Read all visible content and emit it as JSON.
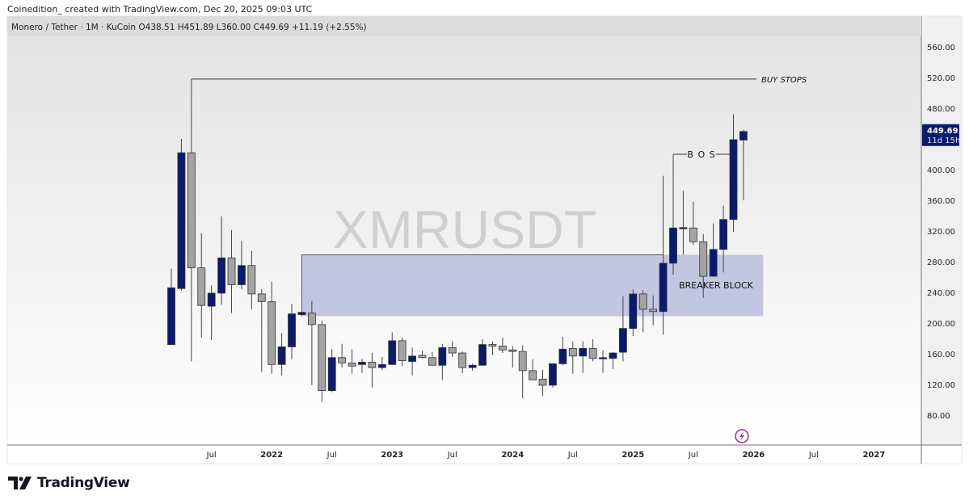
{
  "credit": "Coinedition_ created with TradingView.com, Dec 20, 2025 09:03 UTC",
  "legend": "Monero / Tether · 1M · KuCoin  O438.51  H451.89  L360.00  C449.69  +11.19 (+2.55%)",
  "watermark": "XMRUSDT",
  "brand": "TradingView",
  "colors": {
    "up": "#0c1a6b",
    "down": "#a3a3a3",
    "zone": "#c3c6e0",
    "price_label": "#0c1a6b",
    "event_icon": "#9c27b0"
  },
  "icons": {
    "event": "lightning-icon",
    "logo": "tradingview-logo"
  },
  "chart_data": {
    "type": "candlestick",
    "timeframe": "1M",
    "start_month": "2021-03",
    "ylim": [
      60,
      600
    ],
    "yticks": [
      80,
      120,
      160,
      200,
      240,
      280,
      320,
      360,
      400,
      440,
      480,
      520,
      560
    ],
    "ytick_labels": [
      "80.00",
      "120.00",
      "160.00",
      "200.00",
      "240.00",
      "280.00",
      "320.00",
      "360.00",
      "400.00",
      "440.00",
      "480.00",
      "520.00",
      "560.00"
    ],
    "xticks": [
      {
        "label": "Jul",
        "month": "2021-07",
        "bold": false
      },
      {
        "label": "2022",
        "month": "2022-01",
        "bold": true
      },
      {
        "label": "Jul",
        "month": "2022-07",
        "bold": false
      },
      {
        "label": "2023",
        "month": "2023-01",
        "bold": true
      },
      {
        "label": "Jul",
        "month": "2023-07",
        "bold": false
      },
      {
        "label": "2024",
        "month": "2024-01",
        "bold": true
      },
      {
        "label": "Jul",
        "month": "2024-07",
        "bold": false
      },
      {
        "label": "2025",
        "month": "2025-01",
        "bold": true
      },
      {
        "label": "Jul",
        "month": "2025-07",
        "bold": false
      },
      {
        "label": "2026",
        "month": "2026-01",
        "bold": true
      },
      {
        "label": "Jul",
        "month": "2026-07",
        "bold": false
      },
      {
        "label": "2027",
        "month": "2027-01",
        "bold": true
      }
    ],
    "ohlc": [
      [
        172,
        271,
        172,
        246
      ],
      [
        245,
        440,
        242,
        422
      ],
      [
        422,
        518,
        150,
        272
      ],
      [
        272,
        317,
        181,
        223
      ],
      [
        222,
        249,
        178,
        239
      ],
      [
        239,
        339,
        224,
        285
      ],
      [
        285,
        321,
        213,
        250
      ],
      [
        250,
        307,
        244,
        275
      ],
      [
        275,
        294,
        218,
        238
      ],
      [
        238,
        244,
        136,
        228
      ],
      [
        228,
        254,
        134,
        146
      ],
      [
        146,
        187,
        132,
        169
      ],
      [
        169,
        225,
        153,
        212
      ],
      [
        211,
        215,
        209,
        214
      ],
      [
        213,
        229,
        119,
        198
      ],
      [
        198,
        203,
        97,
        112
      ],
      [
        112,
        166,
        110,
        155
      ],
      [
        155,
        173,
        142,
        148
      ],
      [
        148,
        166,
        134,
        144
      ],
      [
        146,
        153,
        135,
        149
      ],
      [
        149,
        161,
        116,
        142
      ],
      [
        142,
        156,
        139,
        146
      ],
      [
        146,
        188,
        146,
        177
      ],
      [
        177,
        181,
        144,
        151
      ],
      [
        150,
        168,
        132,
        157
      ],
      [
        158,
        164,
        154,
        155
      ],
      [
        155,
        162,
        145,
        145
      ],
      [
        145,
        173,
        126,
        168
      ],
      [
        168,
        176,
        156,
        161
      ],
      [
        161,
        163,
        135,
        142
      ],
      [
        142,
        147,
        138,
        145
      ],
      [
        145,
        179,
        145,
        172
      ],
      [
        172,
        176,
        158,
        170
      ],
      [
        170,
        181,
        161,
        165
      ],
      [
        165,
        170,
        142,
        163
      ],
      [
        163,
        171,
        102,
        138
      ],
      [
        138,
        153,
        126,
        126
      ],
      [
        127,
        139,
        105,
        119
      ],
      [
        119,
        147,
        116,
        147
      ],
      [
        147,
        182,
        145,
        166
      ],
      [
        167,
        176,
        134,
        157
      ],
      [
        157,
        176,
        135,
        167
      ],
      [
        167,
        179,
        150,
        154
      ],
      [
        154,
        165,
        135,
        155
      ],
      [
        154,
        162,
        140,
        161
      ],
      [
        162,
        235,
        150,
        193
      ],
      [
        193,
        244,
        183,
        238
      ],
      [
        238,
        243,
        188,
        218
      ],
      [
        218,
        236,
        197,
        215
      ],
      [
        215,
        392,
        185,
        278
      ],
      [
        278,
        420,
        263,
        324
      ],
      [
        324,
        372,
        289,
        324.5
      ],
      [
        324,
        358,
        302,
        306
      ],
      [
        306,
        316,
        233,
        261
      ],
      [
        261,
        330,
        261,
        296
      ],
      [
        296,
        353,
        266,
        335
      ],
      [
        335,
        472,
        319,
        439
      ],
      [
        438.51,
        451.89,
        360.0,
        449.69
      ]
    ],
    "last_price": {
      "value": "449.69",
      "countdown": "11d 15h"
    },
    "annotations": [
      {
        "label": "BUY STOPS",
        "type": "horizontal-line",
        "price": 518,
        "from": "2021-05",
        "to": "2026-04"
      },
      {
        "label": "B O S",
        "type": "horizontal-line",
        "price": 420,
        "from": "2025-05",
        "to": "2025-11"
      },
      {
        "label": "BREAKER BLOCK",
        "type": "zone",
        "price_top": 289,
        "price_bottom": 209,
        "from": "2022-04",
        "to": "2026-01"
      }
    ]
  }
}
